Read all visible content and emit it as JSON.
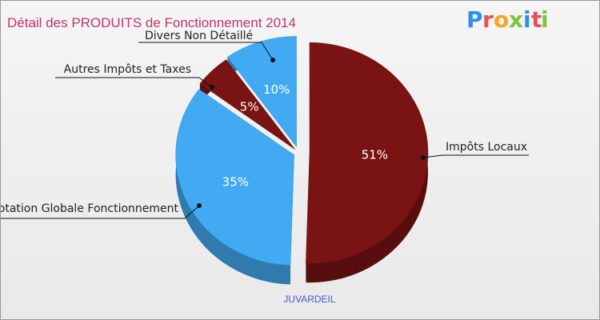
{
  "header": {
    "title": "Détail des PRODUITS de Fonctionnement 2014"
  },
  "brand": {
    "name": "Proxiti",
    "letters": [
      "P",
      "r",
      "o",
      "x",
      "i",
      "t",
      "i"
    ],
    "letter_colors": [
      "#2f8fe8",
      "#e8505b",
      "#f5a623",
      "#7cc142",
      "#2f8fe8",
      "#e8505b",
      "#7cc142"
    ]
  },
  "footer": {
    "commune": "JUVARDEIL"
  },
  "chart_data": {
    "type": "pie",
    "title": "Détail des PRODUITS de Fonctionnement 2014",
    "slices": [
      {
        "label": "Impôts Locaux",
        "value": 51,
        "pct_label": "51%",
        "color": "#7a1414"
      },
      {
        "label": "Dotation Globale Fonctionnement",
        "value": 35,
        "pct_label": "35%",
        "color": "#42aaf2"
      },
      {
        "label": "Autres Impôts et Taxes",
        "value": 5,
        "pct_label": "5%",
        "color": "#7a1414"
      },
      {
        "label": "Divers Non Détaillé",
        "value": 10,
        "pct_label": "10%",
        "color": "#42aaf2"
      }
    ],
    "legend": "callouts"
  }
}
